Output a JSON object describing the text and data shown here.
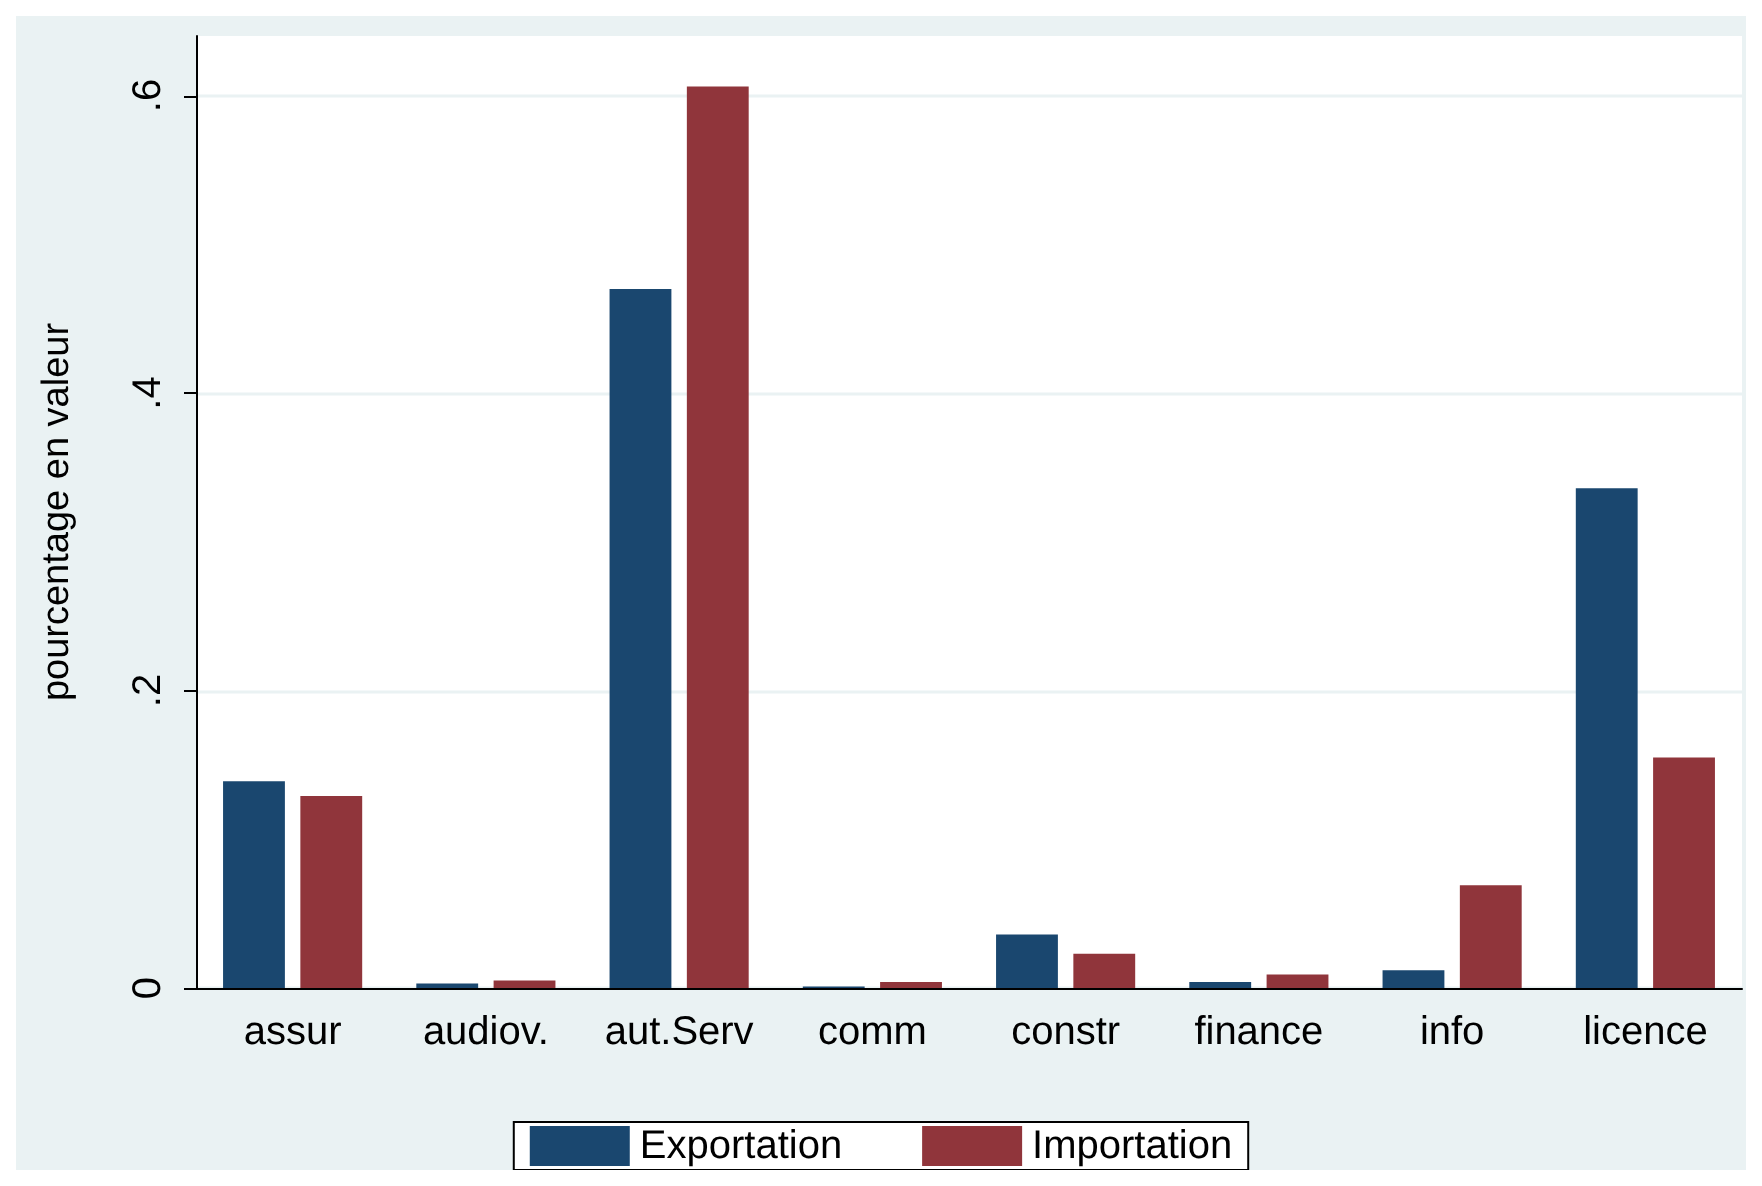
{
  "chart_data": {
    "type": "bar",
    "ylabel": "pourcentage en valeur",
    "categories": [
      "assur",
      "audiov.",
      "aut.Serv",
      "comm",
      "constr",
      "finance",
      "info",
      "licence"
    ],
    "series": [
      {
        "name": "Exportation",
        "color": "#1a476f",
        "values": [
          0.139,
          0.003,
          0.47,
          0.001,
          0.036,
          0.004,
          0.012,
          0.336
        ]
      },
      {
        "name": "Importation",
        "color": "#90353b",
        "values": [
          0.129,
          0.005,
          0.606,
          0.004,
          0.023,
          0.009,
          0.069,
          0.155
        ]
      }
    ],
    "ylim": [
      0,
      0.64
    ],
    "yticks": [
      {
        "value": 0,
        "label": "0"
      },
      {
        "value": 0.2,
        "label": ".2"
      },
      {
        "value": 0.4,
        "label": ".4"
      },
      {
        "value": 0.6,
        "label": ".6"
      }
    ],
    "grid": "y",
    "legend": "bottom"
  }
}
